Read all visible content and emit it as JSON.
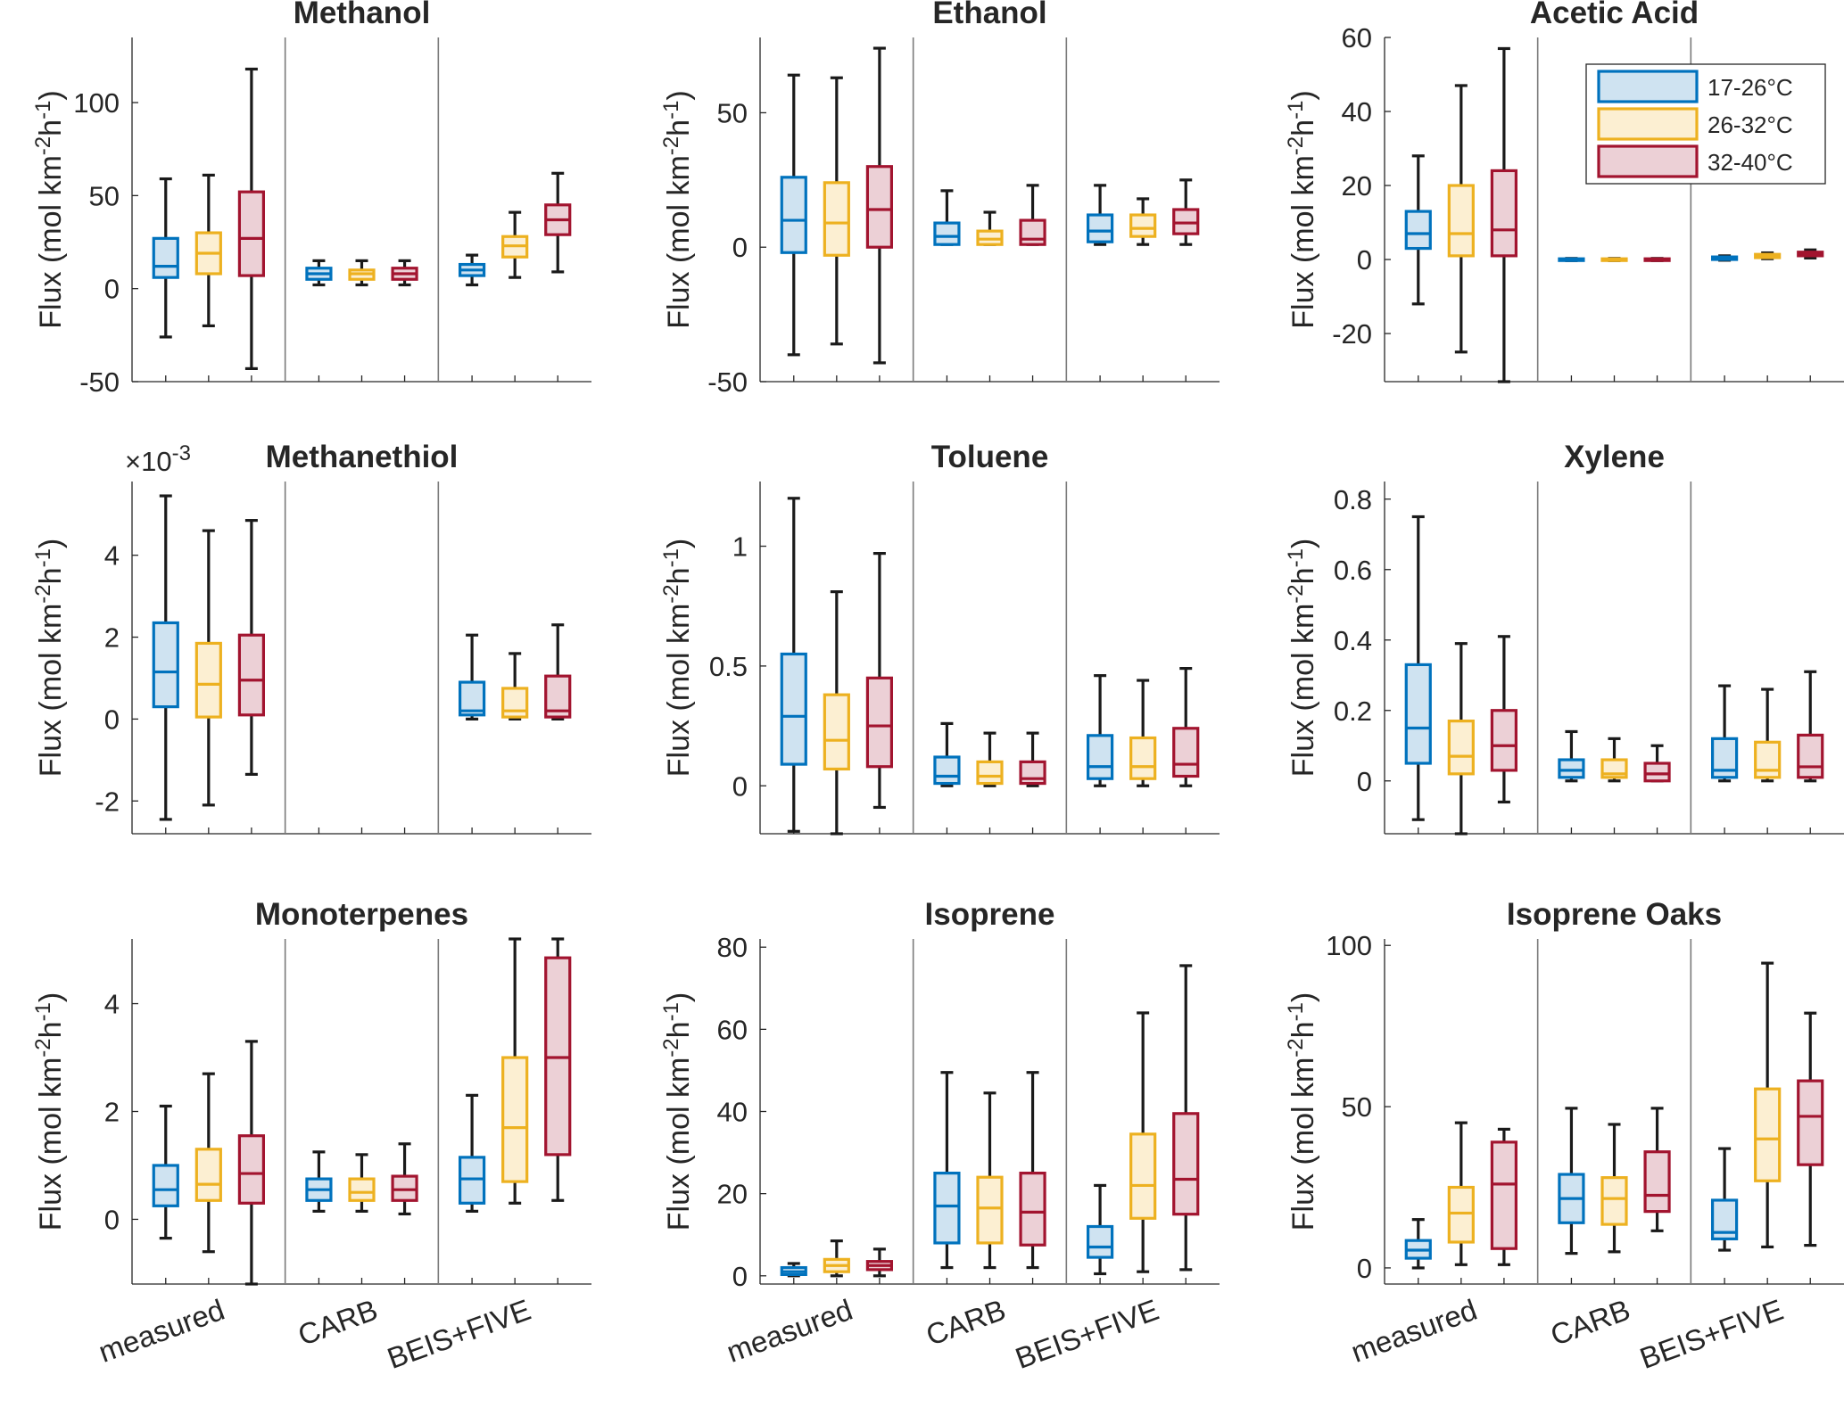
{
  "legend": {
    "items": [
      {
        "label": "17-26°C",
        "color": "#0072BD",
        "fill": "#cfe3f1"
      },
      {
        "label": "26-32°C",
        "color": "#EDB120",
        "fill": "#fcefd2"
      },
      {
        "label": "32-40°C",
        "color": "#A2142F",
        "fill": "#ecd0d6"
      }
    ]
  },
  "chart_data": [
    {
      "type": "box",
      "title": "Methanol",
      "ylabel": "Flux (mol km-2h-1)",
      "ylim": [
        -50,
        135
      ],
      "yticks": [
        -50,
        0,
        50,
        100
      ],
      "ytick_labels": [
        "-50",
        "0",
        "50",
        "100"
      ],
      "xcats": [
        "measured",
        "CARB",
        "BEIS+FIVE"
      ],
      "show_xcats": false,
      "groups": [
        [
          [
            -26,
            6,
            12,
            27,
            59
          ],
          [
            -20,
            8,
            19,
            30,
            61
          ],
          [
            -43,
            7,
            27,
            52,
            118
          ]
        ],
        [
          [
            2,
            5,
            8,
            11,
            15
          ],
          [
            2,
            5,
            8,
            10,
            15
          ],
          [
            2,
            5,
            8,
            11,
            15
          ]
        ],
        [
          [
            2,
            7,
            10,
            13,
            18
          ],
          [
            6,
            17,
            23,
            28,
            41
          ],
          [
            9,
            29,
            37,
            45,
            62
          ]
        ]
      ]
    },
    {
      "type": "box",
      "title": "Ethanol",
      "ylabel": "Flux (mol km-2h-1)",
      "ylim": [
        -50,
        78
      ],
      "yticks": [
        -50,
        0,
        50
      ],
      "ytick_labels": [
        "-50",
        "0",
        "50"
      ],
      "xcats": [
        "measured",
        "CARB",
        "BEIS+FIVE"
      ],
      "show_xcats": false,
      "groups": [
        [
          [
            -40,
            -2,
            10,
            26,
            64
          ],
          [
            -36,
            -3,
            9,
            24,
            63
          ],
          [
            -43,
            0,
            14,
            30,
            74
          ]
        ],
        [
          [
            1,
            1,
            4,
            9,
            21
          ],
          [
            1,
            1,
            3,
            6,
            13
          ],
          [
            1,
            1,
            3,
            10,
            23
          ]
        ],
        [
          [
            1,
            2,
            6,
            12,
            23
          ],
          [
            1,
            4,
            7,
            12,
            18
          ],
          [
            1,
            5,
            9,
            14,
            25
          ]
        ]
      ]
    },
    {
      "type": "box",
      "title": "Acetic Acid",
      "ylabel": "Flux (mol km-2h-1)",
      "ylim": [
        -33,
        60
      ],
      "yticks": [
        -20,
        0,
        20,
        40,
        60
      ],
      "ytick_labels": [
        "-20",
        "0",
        "20",
        "40",
        "60"
      ],
      "xcats": [
        "measured",
        "CARB",
        "BEIS+FIVE"
      ],
      "show_xcats": false,
      "legend": true,
      "groups": [
        [
          [
            -12,
            3,
            7,
            13,
            28
          ],
          [
            -25,
            1,
            7,
            20,
            47
          ],
          [
            -33,
            1,
            8,
            24,
            57
          ]
        ],
        [
          [
            -0.3,
            -0.2,
            0,
            0.2,
            0.3
          ],
          [
            -0.3,
            -0.2,
            0,
            0.2,
            0.3
          ],
          [
            -0.3,
            -0.2,
            0,
            0.2,
            0.3
          ]
        ],
        [
          [
            -0.2,
            0,
            0.4,
            0.7,
            1
          ],
          [
            0.2,
            0.5,
            1,
            1.4,
            1.8
          ],
          [
            0.4,
            1,
            1.5,
            2,
            2.6
          ]
        ]
      ]
    },
    {
      "type": "box",
      "title": "Methanethiol",
      "ylabel": "Flux (mol km-2h-1)",
      "exponent": "×10-3",
      "ylim": [
        -2.8,
        5.8
      ],
      "yticks": [
        -2,
        0,
        2,
        4
      ],
      "ytick_labels": [
        "-2",
        "0",
        "2",
        "4"
      ],
      "xcats": [
        "measured",
        "CARB",
        "BEIS+FIVE"
      ],
      "show_xcats": false,
      "groups": [
        [
          [
            -2.45,
            0.3,
            1.15,
            2.35,
            5.45
          ],
          [
            -2.1,
            0.05,
            0.85,
            1.85,
            4.6
          ],
          [
            -1.35,
            0.1,
            0.95,
            2.05,
            4.85
          ]
        ],
        null,
        [
          [
            0,
            0.1,
            0.2,
            0.9,
            2.05
          ],
          [
            0,
            0.05,
            0.2,
            0.75,
            1.6
          ],
          [
            0,
            0.05,
            0.2,
            1.05,
            2.3
          ]
        ]
      ]
    },
    {
      "type": "box",
      "title": "Toluene",
      "ylabel": "Flux (mol km-2h-1)",
      "ylim": [
        -0.2,
        1.27
      ],
      "yticks": [
        0,
        0.5,
        1
      ],
      "ytick_labels": [
        "0",
        "0.5",
        "1"
      ],
      "xcats": [
        "measured",
        "CARB",
        "BEIS+FIVE"
      ],
      "show_xcats": false,
      "groups": [
        [
          [
            -0.19,
            0.09,
            0.29,
            0.55,
            1.2
          ],
          [
            -0.2,
            0.07,
            0.19,
            0.38,
            0.81
          ],
          [
            -0.09,
            0.08,
            0.25,
            0.45,
            0.97
          ]
        ],
        [
          [
            0,
            0.01,
            0.04,
            0.12,
            0.26
          ],
          [
            0,
            0.01,
            0.04,
            0.1,
            0.22
          ],
          [
            0,
            0.01,
            0.03,
            0.1,
            0.22
          ]
        ],
        [
          [
            0,
            0.03,
            0.08,
            0.21,
            0.46
          ],
          [
            0,
            0.03,
            0.08,
            0.2,
            0.44
          ],
          [
            0,
            0.04,
            0.09,
            0.24,
            0.49
          ]
        ]
      ]
    },
    {
      "type": "box",
      "title": "Xylene",
      "ylabel": "Flux (mol km-2h-1)",
      "ylim": [
        -0.15,
        0.85
      ],
      "yticks": [
        0,
        0.2,
        0.4,
        0.6,
        0.8
      ],
      "ytick_labels": [
        "0",
        "0.2",
        "0.4",
        "0.6",
        "0.8"
      ],
      "xcats": [
        "measured",
        "CARB",
        "BEIS+FIVE"
      ],
      "show_xcats": false,
      "groups": [
        [
          [
            -0.11,
            0.05,
            0.15,
            0.33,
            0.75
          ],
          [
            -0.15,
            0.02,
            0.07,
            0.17,
            0.39
          ],
          [
            -0.06,
            0.03,
            0.1,
            0.2,
            0.41
          ]
        ],
        [
          [
            0,
            0.01,
            0.03,
            0.06,
            0.14
          ],
          [
            0,
            0.01,
            0.02,
            0.06,
            0.12
          ],
          [
            0,
            0,
            0.02,
            0.05,
            0.1
          ]
        ],
        [
          [
            0,
            0.01,
            0.03,
            0.12,
            0.27
          ],
          [
            0,
            0.01,
            0.03,
            0.11,
            0.26
          ],
          [
            0,
            0.01,
            0.04,
            0.13,
            0.31
          ]
        ]
      ]
    },
    {
      "type": "box",
      "title": "Monoterpenes",
      "ylabel": "Flux (mol km-2h-1)",
      "ylim": [
        -1.2,
        5.2
      ],
      "yticks": [
        0,
        2,
        4
      ],
      "ytick_labels": [
        "0",
        "2",
        "4"
      ],
      "xcats": [
        "measured",
        "CARB",
        "BEIS+FIVE"
      ],
      "show_xcats": true,
      "groups": [
        [
          [
            -0.35,
            0.25,
            0.55,
            1.0,
            2.1
          ],
          [
            -0.6,
            0.35,
            0.65,
            1.3,
            2.7
          ],
          [
            -1.2,
            0.3,
            0.85,
            1.55,
            3.3
          ]
        ],
        [
          [
            0.15,
            0.35,
            0.55,
            0.75,
            1.25
          ],
          [
            0.15,
            0.35,
            0.5,
            0.75,
            1.2
          ],
          [
            0.1,
            0.35,
            0.55,
            0.8,
            1.4
          ]
        ],
        [
          [
            0.15,
            0.3,
            0.75,
            1.15,
            2.3
          ],
          [
            0.3,
            0.7,
            1.7,
            3.0,
            5.2
          ],
          [
            0.35,
            1.2,
            3.0,
            4.85,
            5.2
          ]
        ]
      ]
    },
    {
      "type": "box",
      "title": "Isoprene",
      "ylabel": "Flux (mol km-2h-1)",
      "ylim": [
        -2,
        82
      ],
      "yticks": [
        0,
        20,
        40,
        60,
        80
      ],
      "ytick_labels": [
        "0",
        "20",
        "40",
        "60",
        "80"
      ],
      "xcats": [
        "measured",
        "CARB",
        "BEIS+FIVE"
      ],
      "show_xcats": true,
      "groups": [
        [
          [
            0,
            0.3,
            1,
            2,
            3
          ],
          [
            0,
            1,
            2.5,
            4,
            8.5
          ],
          [
            0,
            1.5,
            2.5,
            3.5,
            6.5
          ]
        ],
        [
          [
            2,
            8,
            17,
            25,
            49.5
          ],
          [
            2,
            8,
            16.5,
            24,
            44.5
          ],
          [
            2,
            7.5,
            15.5,
            25,
            49.5
          ]
        ],
        [
          [
            0.5,
            4.5,
            7,
            12,
            22
          ],
          [
            1,
            14,
            22,
            34.5,
            64
          ],
          [
            1.5,
            15,
            23.5,
            39.5,
            75.5
          ]
        ]
      ]
    },
    {
      "type": "box",
      "title": "Isoprene Oaks",
      "ylabel": "Flux (mol km-2h-1)",
      "ylim": [
        -5,
        102
      ],
      "yticks": [
        0,
        50,
        100
      ],
      "ytick_labels": [
        "0",
        "50",
        "100"
      ],
      "xcats": [
        "measured",
        "CARB",
        "BEIS+FIVE"
      ],
      "show_xcats": true,
      "groups": [
        [
          [
            0,
            3,
            5.5,
            8.5,
            15
          ],
          [
            1,
            8,
            17,
            25,
            45
          ],
          [
            1,
            6,
            26,
            39,
            43
          ]
        ],
        [
          [
            4.5,
            14,
            21.5,
            29,
            49.5
          ],
          [
            5,
            13.5,
            21.5,
            28,
            44.5
          ],
          [
            11.5,
            17.5,
            22.5,
            36,
            49.5
          ]
        ],
        [
          [
            5.5,
            9,
            11,
            21,
            37
          ],
          [
            6.5,
            27,
            40,
            55.5,
            94.5
          ],
          [
            7,
            32,
            47,
            58,
            79
          ]
        ]
      ]
    }
  ]
}
